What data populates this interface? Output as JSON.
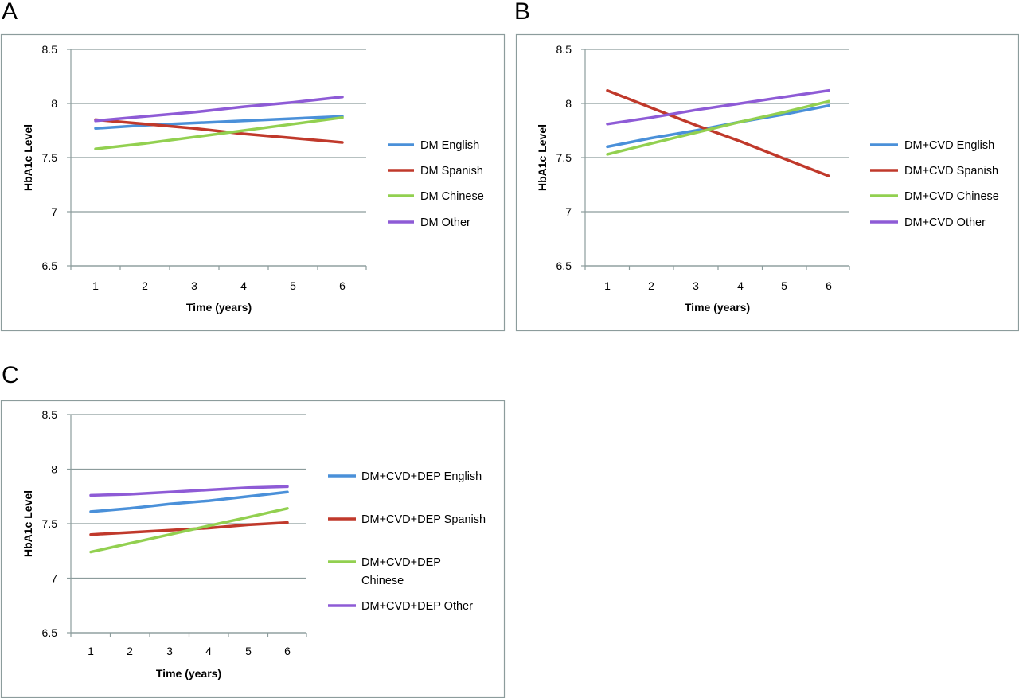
{
  "colors": {
    "english": "#4a90d9",
    "spanish": "#c0392b",
    "chinese": "#92d050",
    "other": "#8e5bd6",
    "grid": "#8c9c9c",
    "frame": "#8c9c9c"
  },
  "panels": [
    {
      "letter": "A"
    },
    {
      "letter": "B"
    },
    {
      "letter": "C"
    }
  ],
  "chart_data": [
    {
      "type": "line",
      "panel": "A",
      "xlabel": "Time (years)",
      "ylabel": "HbA1c Level",
      "ylim": [
        6.5,
        8.5
      ],
      "yticks": [
        "6.5",
        "7",
        "7.5",
        "8",
        "8.5"
      ],
      "x": [
        1,
        2,
        3,
        4,
        5,
        6
      ],
      "grid": "horizontal",
      "legend_position": "right",
      "series": [
        {
          "name": "DM English",
          "color_key": "english",
          "values": [
            7.77,
            7.8,
            7.82,
            7.84,
            7.86,
            7.88
          ]
        },
        {
          "name": "DM Spanish",
          "color_key": "spanish",
          "values": [
            7.85,
            7.81,
            7.77,
            7.72,
            7.68,
            7.64
          ]
        },
        {
          "name": "DM Chinese",
          "color_key": "chinese",
          "values": [
            7.58,
            7.63,
            7.69,
            7.75,
            7.81,
            7.87
          ]
        },
        {
          "name": "DM Other",
          "color_key": "other",
          "values": [
            7.84,
            7.88,
            7.92,
            7.97,
            8.01,
            8.06
          ]
        }
      ]
    },
    {
      "type": "line",
      "panel": "B",
      "xlabel": "Time (years)",
      "ylabel": "HbA1c Level",
      "ylim": [
        6.5,
        8.5
      ],
      "yticks": [
        "6.5",
        "7",
        "7.5",
        "8",
        "8.5"
      ],
      "x": [
        1,
        2,
        3,
        4,
        5,
        6
      ],
      "grid": "horizontal",
      "legend_position": "right",
      "series": [
        {
          "name": "DM+CVD English",
          "color_key": "english",
          "values": [
            7.6,
            7.68,
            7.75,
            7.83,
            7.9,
            7.98
          ]
        },
        {
          "name": "DM+CVD Spanish",
          "color_key": "spanish",
          "values": [
            8.12,
            7.96,
            7.8,
            7.65,
            7.49,
            7.33
          ]
        },
        {
          "name": "DM+CVD Chinese",
          "color_key": "chinese",
          "values": [
            7.53,
            7.63,
            7.73,
            7.83,
            7.92,
            8.02
          ]
        },
        {
          "name": "DM+CVD Other",
          "color_key": "other",
          "values": [
            7.81,
            7.87,
            7.94,
            8.0,
            8.06,
            8.12
          ]
        }
      ]
    },
    {
      "type": "line",
      "panel": "C",
      "xlabel": "Time (years)",
      "ylabel": "HbA1c Level",
      "ylim": [
        6.5,
        8.5
      ],
      "yticks": [
        "6.5",
        "7",
        "7.5",
        "8",
        "8.5"
      ],
      "x": [
        1,
        2,
        3,
        4,
        5,
        6
      ],
      "grid": "horizontal",
      "legend_position": "right",
      "series": [
        {
          "name": "DM+CVD+DEP English",
          "color_key": "english",
          "values": [
            7.61,
            7.64,
            7.68,
            7.71,
            7.75,
            7.79
          ]
        },
        {
          "name": "DM+CVD+DEP Spanish",
          "color_key": "spanish",
          "values": [
            7.4,
            7.42,
            7.44,
            7.46,
            7.49,
            7.51
          ]
        },
        {
          "name": "DM+CVD+DEP Chinese",
          "legend_lines": [
            "DM+CVD+DEP",
            "Chinese"
          ],
          "color_key": "chinese",
          "values": [
            7.24,
            7.32,
            7.4,
            7.48,
            7.56,
            7.64
          ]
        },
        {
          "name": "DM+CVD+DEP Other",
          "color_key": "other",
          "values": [
            7.76,
            7.77,
            7.79,
            7.81,
            7.83,
            7.84
          ]
        }
      ]
    }
  ]
}
